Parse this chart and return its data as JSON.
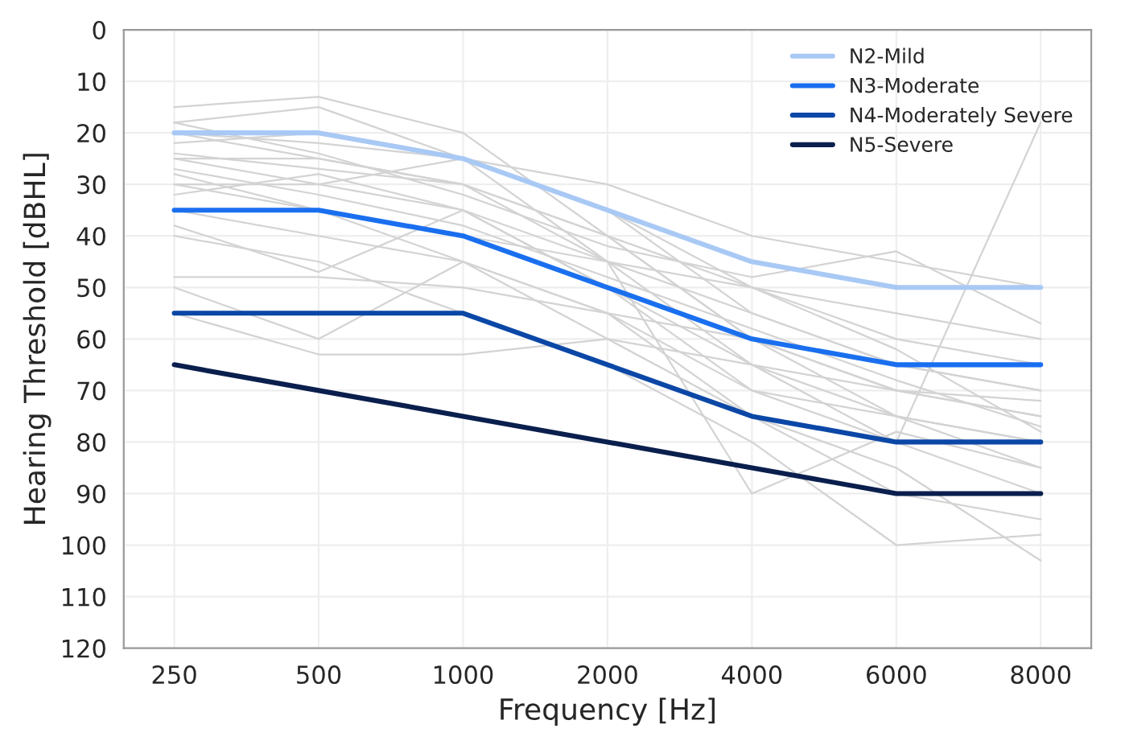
{
  "chart_data": {
    "type": "line",
    "xlabel": "Frequency [Hz]",
    "ylabel": "Hearing Threshold [dBHL]",
    "categories": [
      "250",
      "500",
      "1000",
      "2000",
      "4000",
      "6000",
      "8000"
    ],
    "ylim": [
      120,
      0
    ],
    "yticks": [
      0,
      10,
      20,
      30,
      40,
      50,
      60,
      70,
      80,
      90,
      100,
      110,
      120
    ],
    "grid": true,
    "legend": "top right",
    "marker": "none",
    "line_style": "solid",
    "series": [
      {
        "color": "#d3d3d3",
        "values": [
          15,
          13,
          20,
          40,
          60,
          75,
          80
        ]
      },
      {
        "color": "#d3d3d3",
        "values": [
          18,
          15,
          25,
          35,
          50,
          55,
          60
        ]
      },
      {
        "color": "#d3d3d3",
        "values": [
          20,
          25,
          30,
          45,
          55,
          65,
          70
        ]
      },
      {
        "color": "#d3d3d3",
        "values": [
          22,
          20,
          25,
          30,
          40,
          45,
          50
        ]
      },
      {
        "color": "#d3d3d3",
        "values": [
          25,
          30,
          35,
          50,
          65,
          75,
          85
        ]
      },
      {
        "color": "#d3d3d3",
        "values": [
          25,
          25,
          30,
          40,
          60,
          70,
          75
        ]
      },
      {
        "color": "#d3d3d3",
        "values": [
          28,
          35,
          45,
          55,
          70,
          80,
          90
        ]
      },
      {
        "color": "#d3d3d3",
        "values": [
          30,
          30,
          25,
          35,
          55,
          65,
          70
        ]
      },
      {
        "color": "#d3d3d3",
        "values": [
          30,
          35,
          40,
          45,
          50,
          60,
          65
        ]
      },
      {
        "color": "#d3d3d3",
        "values": [
          32,
          28,
          35,
          45,
          65,
          80,
          18
        ]
      },
      {
        "color": "#d3d3d3",
        "values": [
          35,
          40,
          45,
          60,
          75,
          90,
          95
        ]
      },
      {
        "color": "#d3d3d3",
        "values": [
          38,
          47,
          35,
          50,
          70,
          75,
          80
        ]
      },
      {
        "color": "#d3d3d3",
        "values": [
          40,
          45,
          55,
          65,
          80,
          100,
          98
        ]
      },
      {
        "color": "#d3d3d3",
        "values": [
          48,
          48,
          50,
          55,
          60,
          70,
          75
        ]
      },
      {
        "color": "#d3d3d3",
        "values": [
          50,
          60,
          45,
          55,
          75,
          85,
          103
        ]
      },
      {
        "color": "#d3d3d3",
        "values": [
          55,
          63,
          63,
          60,
          65,
          70,
          72
        ]
      },
      {
        "color": "#d3d3d3",
        "values": [
          20,
          22,
          25,
          45,
          90,
          78,
          85
        ]
      },
      {
        "color": "#d3d3d3",
        "values": [
          24,
          27,
          30,
          40,
          50,
          62,
          78
        ]
      },
      {
        "color": "#d3d3d3",
        "values": [
          18,
          24,
          32,
          42,
          48,
          43,
          57
        ]
      },
      {
        "color": "#d3d3d3",
        "values": [
          27,
          32,
          38,
          48,
          58,
          68,
          77
        ]
      },
      {
        "name": "N2-Mild",
        "color": "#a9c9f5",
        "values": [
          20,
          20,
          25,
          35,
          45,
          50,
          50
        ]
      },
      {
        "name": "N3-Moderate",
        "color": "#1a6fef",
        "values": [
          35,
          35,
          40,
          50,
          60,
          65,
          65
        ]
      },
      {
        "name": "N4-Moderately Severe",
        "color": "#0b47a6",
        "values": [
          55,
          55,
          55,
          65,
          75,
          80,
          80
        ]
      },
      {
        "name": "N5-Severe",
        "color": "#0a1f4d",
        "values": [
          65,
          70,
          75,
          80,
          85,
          90,
          90
        ]
      }
    ]
  }
}
